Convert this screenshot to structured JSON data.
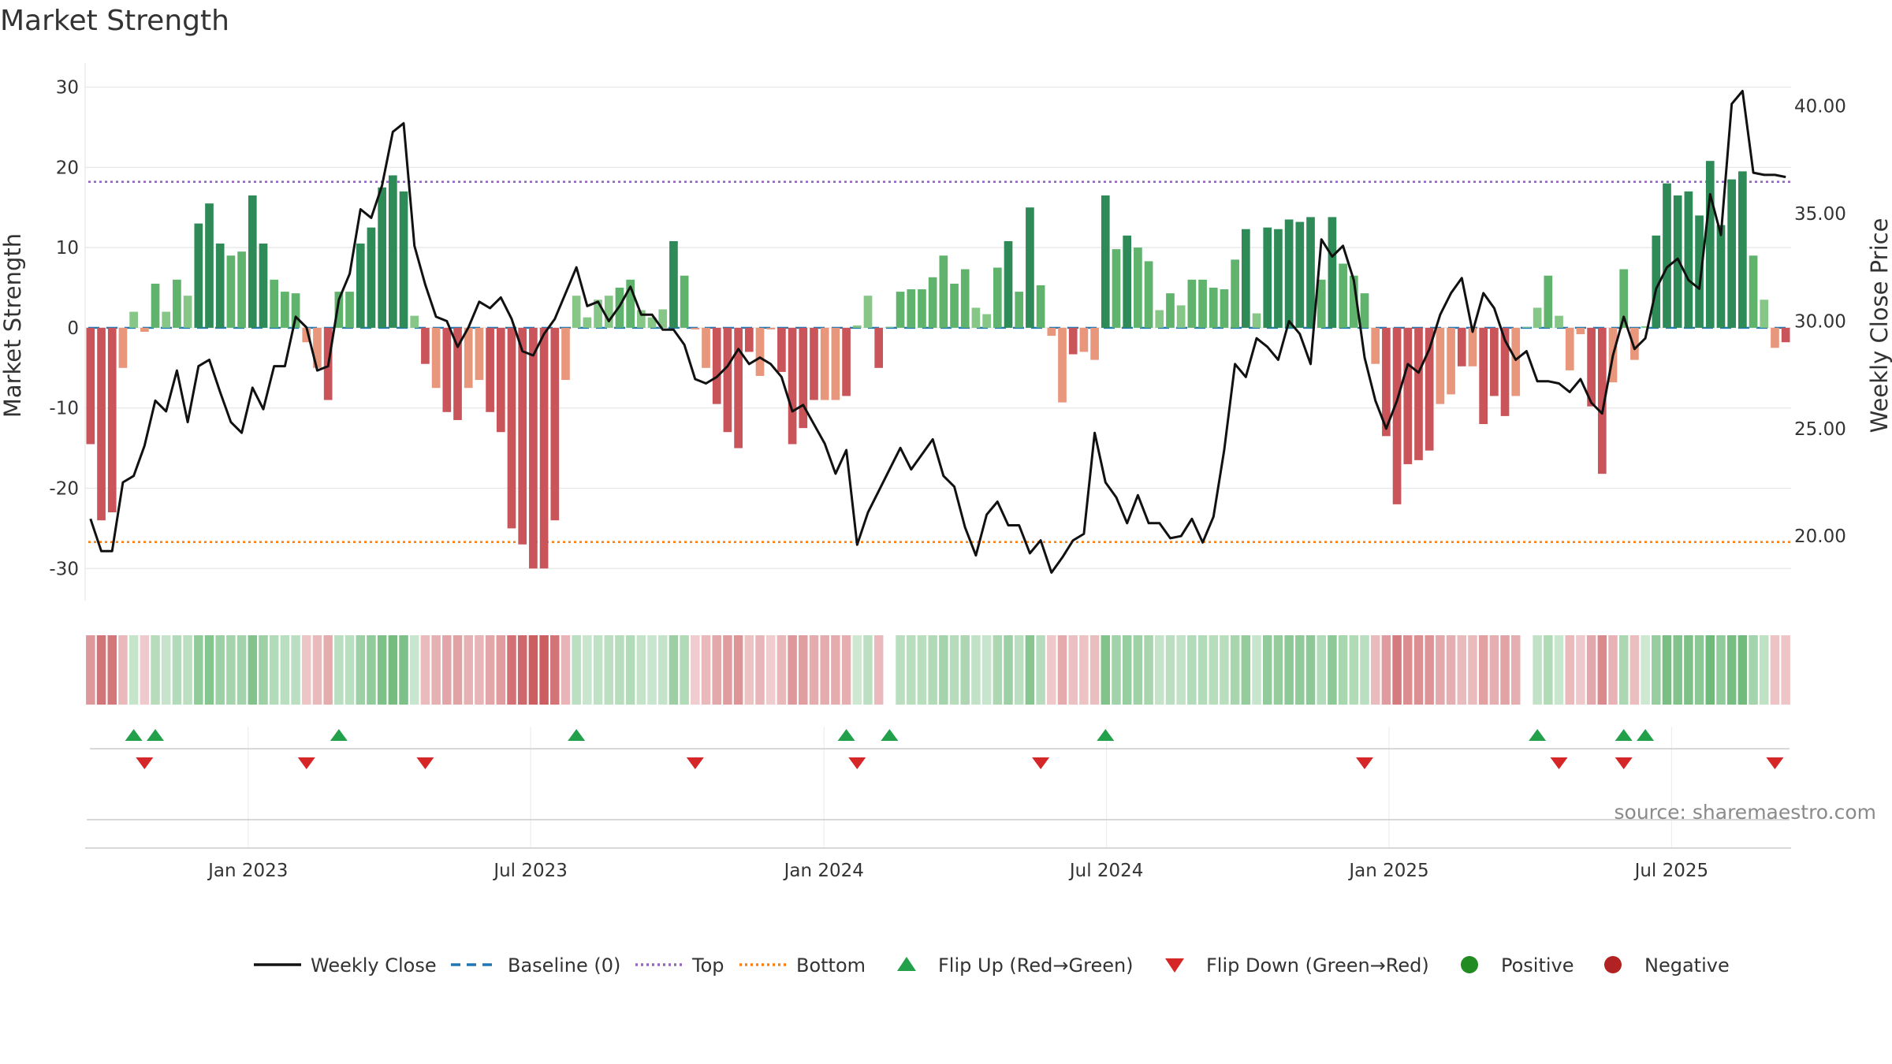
{
  "chart_data": {
    "type": "bar+line",
    "title": "Market Strength",
    "ylabel": "Market Strength",
    "y2label": "Weekly Close Price",
    "ylim": [
      -34,
      33
    ],
    "y2lim": [
      17.0,
      42.0
    ],
    "yticks": [
      30,
      20,
      10,
      0,
      -10,
      -20,
      -30
    ],
    "y2ticks": [
      "40.00",
      "35.00",
      "30.00",
      "25.00",
      "20.00"
    ],
    "top_level": 18.2,
    "bottom_level": -26.7,
    "x_range_weeks": [
      0,
      157
    ],
    "xtick_labels": [
      {
        "week": 15,
        "label": "Jan 2023"
      },
      {
        "week": 41,
        "label": "Jul 2023"
      },
      {
        "week": 68,
        "label": "Jan 2024"
      },
      {
        "week": 94,
        "label": "Jul 2024"
      },
      {
        "week": 120,
        "label": "Jan 2025"
      },
      {
        "week": 146,
        "label": "Jul 2025"
      }
    ],
    "strength": [
      -14.5,
      -24,
      -23,
      -5,
      2,
      -0.5,
      5.5,
      2,
      6,
      4,
      13,
      15.5,
      10.5,
      9,
      9.5,
      16.5,
      10.5,
      6,
      4.5,
      4.3,
      -1.8,
      -5,
      -9,
      4.5,
      4.5,
      10.5,
      12.5,
      17.5,
      19,
      17,
      1.5,
      -4.5,
      -7.5,
      -10.5,
      -11.5,
      -7.5,
      -6.5,
      -10.5,
      -13,
      -25,
      -27,
      -30,
      -30,
      -24,
      -6.5,
      4,
      1.3,
      3.5,
      4,
      5,
      6,
      2.2,
      1.3,
      2.3,
      10.8,
      6.5,
      -0.2,
      -5,
      -9.5,
      -13,
      -15,
      -3,
      -6,
      -0.2,
      -5.5,
      -14.5,
      -12.5,
      -9,
      -9,
      -9,
      -8.5,
      0.3,
      4,
      -5,
      0.1,
      4.5,
      4.8,
      4.8,
      6.3,
      9,
      5.5,
      7.3,
      2.5,
      1.7,
      7.5,
      10.8,
      4.5,
      15,
      5.3,
      -1,
      -9.3,
      -3.3,
      -3,
      -4,
      16.5,
      9.8,
      11.5,
      10,
      8.3,
      2.2,
      4.3,
      2.8,
      6,
      6,
      5,
      4.8,
      8.5,
      12.3,
      1.8,
      12.5,
      12.3,
      13.5,
      13.2,
      13.8,
      6,
      13.8,
      8,
      6.5,
      4.3,
      -4.5,
      -13.5,
      -22,
      -17,
      -16.5,
      -15.3,
      -9.5,
      -8.3,
      -4.8,
      -4.8,
      -12,
      -8.5,
      -11,
      -8.5,
      0.1,
      2.5,
      6.5,
      1.5,
      -5.3,
      -0.8,
      -9.8,
      -18.2,
      -6.8,
      7.3,
      -4,
      0.2,
      11.5,
      18,
      16.5,
      17,
      14,
      20.8,
      12.8,
      18.5,
      19.5,
      9,
      3.5,
      -2.5,
      -1.8
    ],
    "close": [
      20.8,
      19.3,
      19.3,
      22.5,
      22.8,
      24.2,
      26.3,
      25.8,
      27.7,
      25.3,
      27.9,
      28.2,
      26.7,
      25.3,
      24.8,
      26.9,
      25.9,
      27.9,
      27.9,
      30.2,
      29.7,
      27.7,
      27.9,
      31.0,
      32.2,
      35.2,
      34.8,
      36.3,
      38.8,
      39.2,
      33.5,
      31.7,
      30.2,
      30.0,
      28.8,
      29.7,
      30.9,
      30.6,
      31.1,
      30.1,
      28.6,
      28.4,
      29.4,
      30.1,
      31.3,
      32.5,
      30.7,
      30.9,
      30.0,
      30.7,
      31.6,
      30.3,
      30.3,
      29.6,
      29.6,
      28.9,
      27.3,
      27.1,
      27.4,
      27.9,
      28.7,
      28.0,
      28.3,
      28.0,
      27.4,
      25.8,
      26.1,
      25.2,
      24.3,
      22.9,
      24.0,
      19.6,
      21.1,
      22.1,
      23.1,
      24.1,
      23.1,
      23.8,
      24.5,
      22.8,
      22.3,
      20.4,
      19.1,
      21.0,
      21.6,
      20.5,
      20.5,
      19.2,
      19.8,
      18.3,
      19.0,
      19.8,
      20.1,
      24.8,
      22.5,
      21.8,
      20.6,
      21.9,
      20.6,
      20.6,
      19.9,
      20.0,
      20.8,
      19.7,
      20.9,
      24.0,
      28.0,
      27.4,
      29.2,
      28.8,
      28.2,
      30.0,
      29.4,
      28.0,
      33.8,
      33.0,
      33.5,
      31.9,
      28.3,
      26.3,
      25.0,
      26.3,
      28.0,
      27.6,
      28.7,
      30.3,
      31.3,
      32.0,
      29.5,
      31.3,
      30.6,
      29.1,
      28.2,
      28.6,
      27.2,
      27.2,
      27.1,
      26.7,
      27.3,
      26.2,
      25.7,
      28.4,
      30.2,
      28.7,
      29.2,
      31.5,
      32.5,
      32.9,
      31.9,
      31.5,
      35.9,
      34.0,
      40.1,
      40.7,
      36.9,
      36.8,
      36.8,
      36.7
    ],
    "flip_up_weeks": [
      4,
      6,
      23,
      45,
      70,
      74,
      94,
      134,
      142,
      144
    ],
    "flip_down_weeks": [
      5,
      20,
      31,
      56,
      71,
      88,
      118,
      136,
      142,
      156
    ],
    "source": "source: sharemaestro.com"
  },
  "legend": [
    {
      "key": "weekly-close",
      "label": "Weekly Close"
    },
    {
      "key": "baseline",
      "label": "Baseline (0)"
    },
    {
      "key": "top",
      "label": "Top"
    },
    {
      "key": "bottom",
      "label": "Bottom"
    },
    {
      "key": "flip-up",
      "label": "Flip Up (Red→Green)"
    },
    {
      "key": "flip-down",
      "label": "Flip Down (Green→Red)"
    },
    {
      "key": "positive",
      "label": "Positive"
    },
    {
      "key": "negative",
      "label": "Negative"
    }
  ],
  "colors": {
    "pos_strong": "#2e8b57",
    "pos_mid": "#5fb36c",
    "pos_light": "#86c687",
    "neg_strong": "#c9555a",
    "neg_light": "#e8967c",
    "close_line": "#111111",
    "baseline": "#1f77b4",
    "top_line": "#9467bd",
    "bottom_line": "#ff7f0e",
    "flip_up": "#22a04a",
    "flip_down": "#d62728",
    "positive_dot": "#228b22",
    "negative_dot": "#b22222",
    "grid": "#e6e6e6"
  }
}
